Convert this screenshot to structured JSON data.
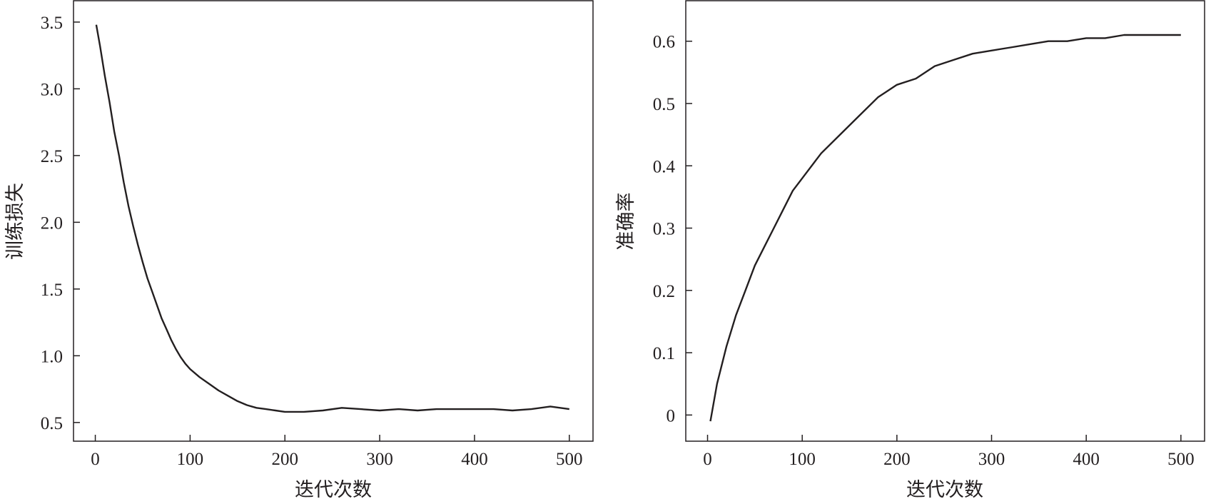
{
  "chart_data": [
    {
      "type": "line",
      "title": "",
      "xlabel": "迭代次数",
      "ylabel": "训练损失",
      "xlim": [
        -23,
        525
      ],
      "ylim": [
        0.36,
        3.66
      ],
      "x_ticks": [
        0,
        100,
        200,
        300,
        400,
        500
      ],
      "x_tick_labels": [
        "0",
        "100",
        "200",
        "300",
        "400",
        "500"
      ],
      "y_ticks": [
        0.5,
        1.0,
        1.5,
        2.0,
        2.5,
        3.0,
        3.5
      ],
      "y_tick_labels": [
        "0.5",
        "1.0",
        "1.5",
        "2.0",
        "2.5",
        "3.0",
        "3.5"
      ],
      "grid": false,
      "line_color": "#231f20",
      "series": [
        {
          "x": [
            1,
            5,
            10,
            15,
            20,
            25,
            30,
            35,
            40,
            45,
            50,
            55,
            60,
            65,
            70,
            75,
            80,
            85,
            90,
            95,
            100,
            110,
            120,
            130,
            140,
            150,
            160,
            170,
            180,
            190,
            200,
            220,
            240,
            260,
            280,
            300,
            320,
            340,
            360,
            380,
            400,
            420,
            440,
            460,
            480,
            500
          ],
          "values": [
            3.48,
            3.32,
            3.1,
            2.9,
            2.68,
            2.5,
            2.3,
            2.12,
            1.97,
            1.83,
            1.7,
            1.58,
            1.48,
            1.38,
            1.28,
            1.2,
            1.12,
            1.05,
            0.99,
            0.94,
            0.9,
            0.84,
            0.79,
            0.74,
            0.7,
            0.66,
            0.63,
            0.61,
            0.6,
            0.59,
            0.58,
            0.58,
            0.59,
            0.61,
            0.6,
            0.59,
            0.6,
            0.59,
            0.6,
            0.6,
            0.6,
            0.6,
            0.59,
            0.6,
            0.62,
            0.6
          ]
        }
      ]
    },
    {
      "type": "line",
      "title": "",
      "xlabel": "迭代次数",
      "ylabel": "准确率",
      "xlim": [
        -23,
        525
      ],
      "ylim": [
        -0.042,
        0.665
      ],
      "x_ticks": [
        0,
        100,
        200,
        300,
        400,
        500
      ],
      "x_tick_labels": [
        "0",
        "100",
        "200",
        "300",
        "400",
        "500"
      ],
      "y_ticks": [
        0,
        0.1,
        0.2,
        0.3,
        0.4,
        0.5,
        0.6
      ],
      "y_tick_labels": [
        "0",
        "0.1",
        "0.2",
        "0.3",
        "0.4",
        "0.5",
        "0.6"
      ],
      "grid": false,
      "line_color": "#231f20",
      "series": [
        {
          "x": [
            3,
            10,
            20,
            30,
            40,
            50,
            60,
            70,
            80,
            90,
            100,
            120,
            140,
            160,
            180,
            200,
            220,
            240,
            260,
            280,
            300,
            320,
            340,
            360,
            380,
            400,
            420,
            440,
            460,
            480,
            500
          ],
          "values": [
            -0.01,
            0.05,
            0.11,
            0.16,
            0.2,
            0.24,
            0.27,
            0.3,
            0.33,
            0.36,
            0.38,
            0.42,
            0.45,
            0.48,
            0.51,
            0.53,
            0.54,
            0.56,
            0.57,
            0.58,
            0.585,
            0.59,
            0.595,
            0.6,
            0.6,
            0.605,
            0.605,
            0.61,
            0.61,
            0.61,
            0.61
          ]
        }
      ]
    }
  ]
}
